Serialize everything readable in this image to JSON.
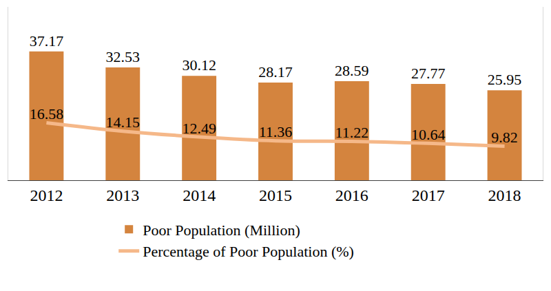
{
  "chart_data": {
    "type": "bar",
    "categories": [
      "2012",
      "2013",
      "2014",
      "2015",
      "2016",
      "2017",
      "2018"
    ],
    "series": [
      {
        "name": "Poor Population (Million)",
        "type": "bar",
        "color": "#d4843e",
        "values": [
          37.17,
          32.53,
          30.12,
          28.17,
          28.59,
          27.77,
          25.95
        ]
      },
      {
        "name": "Percentage of Poor Population (%)",
        "type": "line",
        "color": "#f5b889",
        "values": [
          16.58,
          14.15,
          12.49,
          11.36,
          11.22,
          10.64,
          9.82
        ]
      }
    ],
    "ylim": [
      0,
      50
    ],
    "grid": false,
    "data_labels": true,
    "tick_labels": "x",
    "legend": "bottom"
  }
}
